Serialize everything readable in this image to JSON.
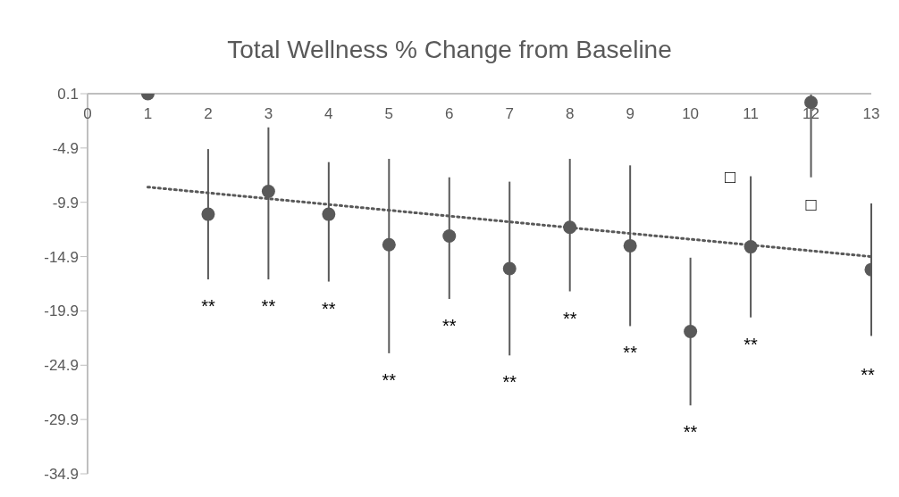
{
  "chart_data": {
    "type": "scatter",
    "title": "Total Wellness % Change from Baseline",
    "x": [
      1,
      2,
      3,
      4,
      5,
      6,
      7,
      8,
      9,
      10,
      11,
      12,
      13
    ],
    "xlim": [
      0,
      13
    ],
    "xticks": [
      0,
      1,
      2,
      3,
      4,
      5,
      6,
      7,
      8,
      9,
      10,
      11,
      12,
      13
    ],
    "ylim": [
      -34.9,
      0.1
    ],
    "yticks": [
      -34.9,
      -29.9,
      -24.9,
      -19.9,
      -14.9,
      -9.9,
      -4.9,
      0.1
    ],
    "grid": false,
    "legend": false,
    "marker": "circle",
    "series": [
      {
        "color": "#595959",
        "values": [
          0.1,
          -11.0,
          -8.9,
          -11.0,
          -13.8,
          -13.0,
          -16.0,
          -12.2,
          -13.9,
          -21.8,
          -14.0,
          -0.7,
          -16.1
        ],
        "errors": [
          null,
          [
            -17.0,
            -5.0
          ],
          [
            -17.0,
            -3.0
          ],
          [
            -17.2,
            -6.2
          ],
          [
            -23.8,
            -5.9
          ],
          [
            -18.8,
            -7.6
          ],
          [
            -24.0,
            -8.0
          ],
          [
            -18.1,
            -5.9
          ],
          [
            -21.3,
            -6.5
          ],
          [
            -28.6,
            -15.0
          ],
          [
            -20.5,
            -7.5
          ],
          [
            -7.6,
            0.1
          ],
          [
            -22.2,
            -10.0
          ]
        ]
      },
      {
        "type": "line",
        "color": "#595959",
        "line_style": "dotted",
        "marker": "none",
        "x": [
          1,
          13
        ],
        "values": [
          -8.5,
          -14.9
        ]
      }
    ],
    "annotations": [
      "**",
      "**",
      "**",
      "**",
      "**",
      "**",
      "**",
      "**",
      "**",
      "**",
      "**",
      "□",
      "□"
    ]
  }
}
